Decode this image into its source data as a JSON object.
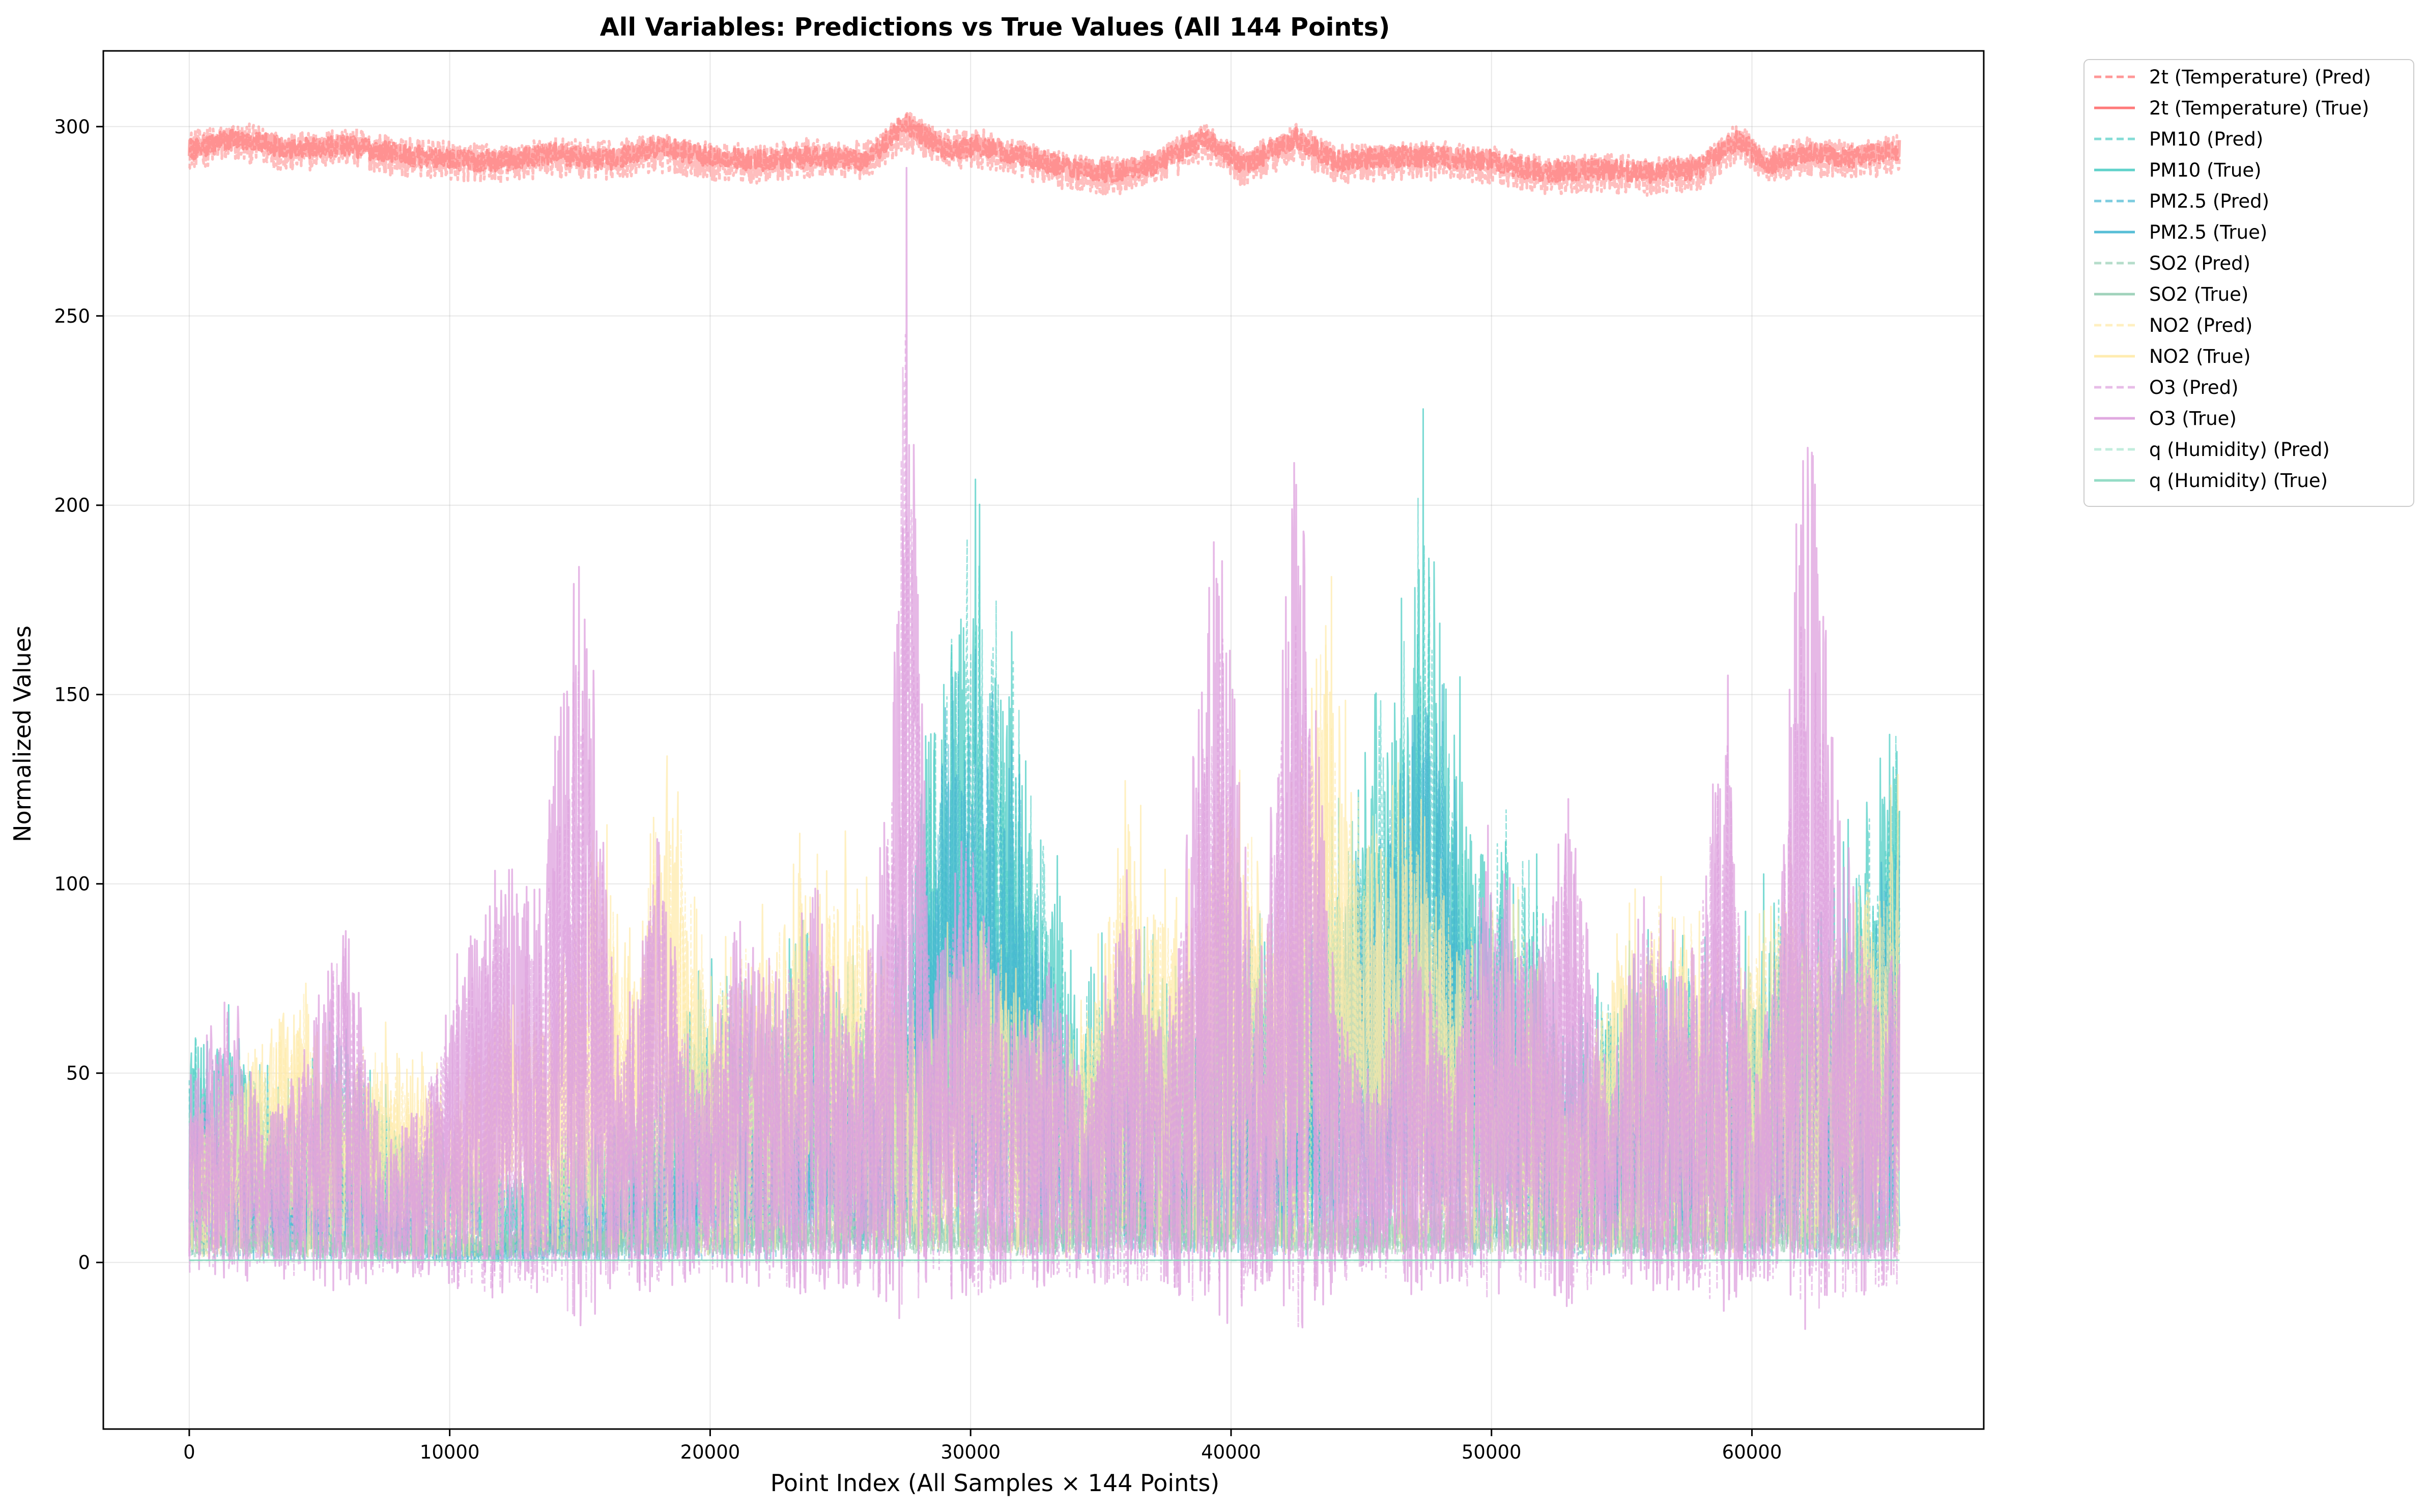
{
  "chart_data": {
    "type": "line",
    "title": "All Variables: Predictions vs True Values (All 144 Points)",
    "xlabel": "Point Index (All Samples × 144 Points)",
    "ylabel": "Normalized Values",
    "xlim": [
      -3300,
      68900
    ],
    "ylim": [
      -44,
      320
    ],
    "xticks": [
      0,
      10000,
      20000,
      30000,
      40000,
      50000,
      60000
    ],
    "yticks": [
      0,
      50,
      100,
      150,
      200,
      250,
      300
    ],
    "grid": true,
    "legend_position": "outside upper right",
    "x_max_index": 65664,
    "series": [
      {
        "name": "2t (Temperature) (Pred)",
        "color": "#ff6b6b",
        "style": "dashed",
        "var": "t2",
        "x": [
          0,
          2000,
          4000,
          6000,
          8000,
          10000,
          12000,
          14000,
          16000,
          18000,
          20000,
          22000,
          24000,
          26000,
          27500,
          29000,
          30500,
          32000,
          34000,
          35500,
          37000,
          39000,
          40500,
          42500,
          44000,
          46000,
          48000,
          50000,
          52000,
          54000,
          56000,
          58000,
          59500,
          60500,
          62000,
          64000,
          65600
        ],
        "y": [
          294,
          296,
          293,
          295,
          292,
          291,
          290,
          292,
          291,
          293,
          291,
          290,
          292,
          291,
          299,
          294,
          294,
          291,
          288,
          287,
          289,
          296,
          289,
          296,
          290,
          291,
          291,
          290,
          287,
          288,
          287,
          288,
          296,
          290,
          292,
          291,
          293
        ]
      },
      {
        "name": "2t (Temperature) (True)",
        "color": "#ff6b6b",
        "style": "solid",
        "var": "t2",
        "x": [
          0,
          2000,
          4000,
          6000,
          8000,
          10000,
          12000,
          14000,
          16000,
          18000,
          20000,
          22000,
          24000,
          26000,
          27500,
          29000,
          30500,
          32000,
          34000,
          35500,
          37000,
          39000,
          40500,
          42500,
          44000,
          46000,
          48000,
          50000,
          52000,
          54000,
          56000,
          58000,
          59500,
          60500,
          62000,
          64000,
          65600
        ],
        "y": [
          294,
          297,
          294,
          295,
          293,
          291,
          291,
          293,
          291,
          295,
          292,
          291,
          292,
          291,
          301,
          294,
          295,
          292,
          289,
          288,
          290,
          297,
          290,
          297,
          291,
          292,
          292,
          291,
          288,
          289,
          288,
          289,
          297,
          290,
          293,
          292,
          294
        ]
      },
      {
        "name": "PM10 (Pred)",
        "color": "#4ecdc4",
        "style": "dashed",
        "var": "pm10",
        "x": [
          0,
          2000,
          4000,
          6000,
          8000,
          10000,
          12000,
          14000,
          16000,
          18000,
          20000,
          22000,
          24000,
          26000,
          27500,
          29000,
          30500,
          32000,
          34000,
          36000,
          38000,
          40000,
          42000,
          44000,
          46000,
          47500,
          49000,
          51000,
          53000,
          55000,
          57000,
          59000,
          61000,
          63000,
          65600
        ],
        "y": [
          32,
          28,
          20,
          30,
          18,
          15,
          12,
          15,
          18,
          24,
          36,
          30,
          40,
          32,
          45,
          90,
          85,
          70,
          30,
          40,
          32,
          45,
          40,
          50,
          70,
          100,
          60,
          55,
          30,
          35,
          40,
          35,
          45,
          40,
          70
        ]
      },
      {
        "name": "PM10 (True)",
        "color": "#4ecdc4",
        "style": "solid",
        "var": "pm10",
        "x": [
          0,
          2000,
          4000,
          6000,
          8000,
          10000,
          12000,
          14000,
          16000,
          18000,
          20000,
          22000,
          24000,
          26000,
          27500,
          29000,
          30500,
          32000,
          34000,
          36000,
          38000,
          40000,
          42000,
          44000,
          46000,
          47500,
          49000,
          51000,
          53000,
          55000,
          57000,
          59000,
          61000,
          63000,
          65600
        ],
        "y": [
          35,
          30,
          22,
          33,
          20,
          16,
          13,
          16,
          20,
          26,
          40,
          33,
          45,
          35,
          50,
          100,
          95,
          80,
          35,
          45,
          35,
          50,
          45,
          55,
          80,
          110,
          65,
          60,
          35,
          40,
          45,
          40,
          50,
          45,
          80
        ]
      },
      {
        "name": "PM2.5 (Pred)",
        "color": "#45b7d1",
        "style": "dashed",
        "var": "pm25",
        "x": [
          0,
          2000,
          4000,
          6000,
          8000,
          10000,
          12000,
          14000,
          16000,
          18000,
          20000,
          22000,
          24000,
          26000,
          27500,
          29000,
          30500,
          32000,
          34000,
          36000,
          38000,
          40000,
          42000,
          44000,
          46000,
          47500,
          49000,
          51000,
          53000,
          55000,
          57000,
          59000,
          61000,
          63000,
          65600
        ],
        "y": [
          20,
          15,
          8,
          15,
          6,
          2,
          3,
          5,
          8,
          12,
          20,
          18,
          25,
          20,
          30,
          75,
          70,
          55,
          18,
          28,
          20,
          35,
          30,
          40,
          55,
          85,
          45,
          40,
          15,
          25,
          30,
          25,
          35,
          30,
          55
        ]
      },
      {
        "name": "PM2.5 (True)",
        "color": "#45b7d1",
        "style": "solid",
        "var": "pm25",
        "x": [
          0,
          2000,
          4000,
          6000,
          8000,
          10000,
          12000,
          14000,
          16000,
          18000,
          20000,
          22000,
          24000,
          26000,
          27500,
          29000,
          30500,
          32000,
          34000,
          36000,
          38000,
          40000,
          42000,
          44000,
          46000,
          47500,
          49000,
          51000,
          53000,
          55000,
          57000,
          59000,
          61000,
          63000,
          65600
        ],
        "y": [
          22,
          17,
          10,
          17,
          8,
          3,
          4,
          6,
          10,
          14,
          22,
          20,
          28,
          22,
          35,
          80,
          75,
          60,
          20,
          30,
          22,
          38,
          32,
          42,
          60,
          90,
          48,
          42,
          18,
          28,
          32,
          28,
          38,
          32,
          60
        ]
      },
      {
        "name": "SO2 (Pred)",
        "color": "#96ceb4",
        "style": "dashed",
        "var": "so2",
        "x": [
          0,
          4000,
          8000,
          12000,
          16000,
          20000,
          24000,
          28000,
          32000,
          36000,
          40000,
          44000,
          48000,
          52000,
          56000,
          60000,
          64000,
          65600
        ],
        "y": [
          5,
          4,
          4,
          4,
          5,
          6,
          7,
          8,
          6,
          10,
          8,
          6,
          8,
          7,
          8,
          7,
          8,
          8
        ]
      },
      {
        "name": "SO2 (True)",
        "color": "#96ceb4",
        "style": "solid",
        "var": "so2",
        "x": [
          0,
          4000,
          8000,
          12000,
          16000,
          20000,
          24000,
          28000,
          32000,
          36000,
          40000,
          44000,
          48000,
          52000,
          56000,
          60000,
          64000,
          65600
        ],
        "y": [
          6,
          5,
          5,
          5,
          6,
          7,
          8,
          10,
          7,
          12,
          9,
          7,
          9,
          8,
          9,
          8,
          9,
          9
        ]
      },
      {
        "name": "NO2 (Pred)",
        "color": "#ffeaa7",
        "style": "dashed",
        "var": "no2",
        "x": [
          0,
          2000,
          4000,
          6000,
          8000,
          10000,
          12000,
          14000,
          15500,
          17000,
          18500,
          20000,
          22000,
          24000,
          26000,
          28000,
          30000,
          32000,
          34000,
          36000,
          38000,
          40000,
          42000,
          43500,
          45000,
          47000,
          49000,
          51000,
          53000,
          55000,
          57000,
          59000,
          61000,
          63000,
          65600
        ],
        "y": [
          20,
          25,
          35,
          25,
          28,
          20,
          35,
          30,
          55,
          40,
          60,
          35,
          40,
          50,
          45,
          30,
          45,
          35,
          25,
          55,
          40,
          60,
          45,
          85,
          55,
          60,
          40,
          45,
          20,
          40,
          45,
          35,
          50,
          40,
          55
        ]
      },
      {
        "name": "NO2 (True)",
        "color": "#ffeaa7",
        "style": "solid",
        "var": "no2",
        "x": [
          0,
          2000,
          4000,
          6000,
          8000,
          10000,
          12000,
          14000,
          15500,
          17000,
          18500,
          20000,
          22000,
          24000,
          26000,
          28000,
          30000,
          32000,
          34000,
          36000,
          38000,
          40000,
          42000,
          43500,
          45000,
          47000,
          49000,
          51000,
          53000,
          55000,
          57000,
          59000,
          61000,
          63000,
          65600
        ],
        "y": [
          22,
          28,
          38,
          28,
          30,
          22,
          38,
          33,
          60,
          45,
          65,
          38,
          45,
          55,
          50,
          33,
          50,
          38,
          28,
          60,
          45,
          65,
          50,
          95,
          60,
          65,
          45,
          50,
          22,
          45,
          50,
          38,
          55,
          45,
          60
        ]
      },
      {
        "name": "O3 (Pred)",
        "color": "#dda0dd",
        "style": "dashed",
        "var": "o3",
        "x": [
          0,
          1500,
          3000,
          4500,
          6000,
          7500,
          9000,
          10500,
          12000,
          13500,
          15000,
          16500,
          18000,
          19500,
          21000,
          22500,
          24000,
          25500,
          27000,
          27500,
          28500,
          30000,
          31500,
          33000,
          34500,
          36000,
          37500,
          39500,
          41000,
          42500,
          44000,
          45500,
          47000,
          48500,
          50000,
          51500,
          53000,
          54500,
          56000,
          57500,
          59000,
          60000,
          61000,
          62000,
          63500,
          65000,
          65600
        ],
        "y": [
          20,
          30,
          15,
          25,
          40,
          12,
          20,
          35,
          45,
          40,
          80,
          25,
          50,
          20,
          40,
          30,
          45,
          25,
          60,
          120,
          30,
          55,
          25,
          35,
          20,
          45,
          25,
          85,
          30,
          90,
          30,
          20,
          40,
          25,
          50,
          35,
          55,
          20,
          45,
          30,
          70,
          20,
          35,
          90,
          50,
          30,
          40
        ]
      },
      {
        "name": "O3 (True)",
        "color": "#dda0dd",
        "style": "solid",
        "var": "o3",
        "x": [
          0,
          1500,
          3000,
          4500,
          6000,
          7500,
          9000,
          10500,
          12000,
          13500,
          15000,
          16500,
          18000,
          19500,
          21000,
          22500,
          24000,
          25500,
          27000,
          27500,
          28500,
          30000,
          31500,
          33000,
          34500,
          36000,
          37500,
          39500,
          41000,
          42500,
          44000,
          45500,
          47000,
          48500,
          50000,
          51500,
          53000,
          54500,
          56000,
          57500,
          59000,
          60000,
          61000,
          62000,
          63500,
          65000,
          65600
        ],
        "y": [
          22,
          35,
          18,
          28,
          45,
          15,
          22,
          40,
          50,
          45,
          95,
          28,
          55,
          22,
          45,
          35,
          50,
          28,
          65,
          150,
          35,
          60,
          28,
          40,
          22,
          50,
          28,
          100,
          35,
          110,
          35,
          22,
          45,
          28,
          55,
          40,
          60,
          22,
          50,
          35,
          80,
          22,
          40,
          120,
          55,
          35,
          45
        ]
      },
      {
        "name": "q (Humidity) (Pred)",
        "color": "#a8e6cf",
        "style": "dashed",
        "var": "q",
        "x": [
          0,
          65600
        ],
        "y": [
          0.5,
          0.5
        ]
      },
      {
        "name": "q (Humidity) (True)",
        "color": "#88d8c0",
        "style": "solid",
        "var": "q",
        "x": [
          0,
          65600
        ],
        "y": [
          0.6,
          0.6
        ]
      }
    ]
  }
}
